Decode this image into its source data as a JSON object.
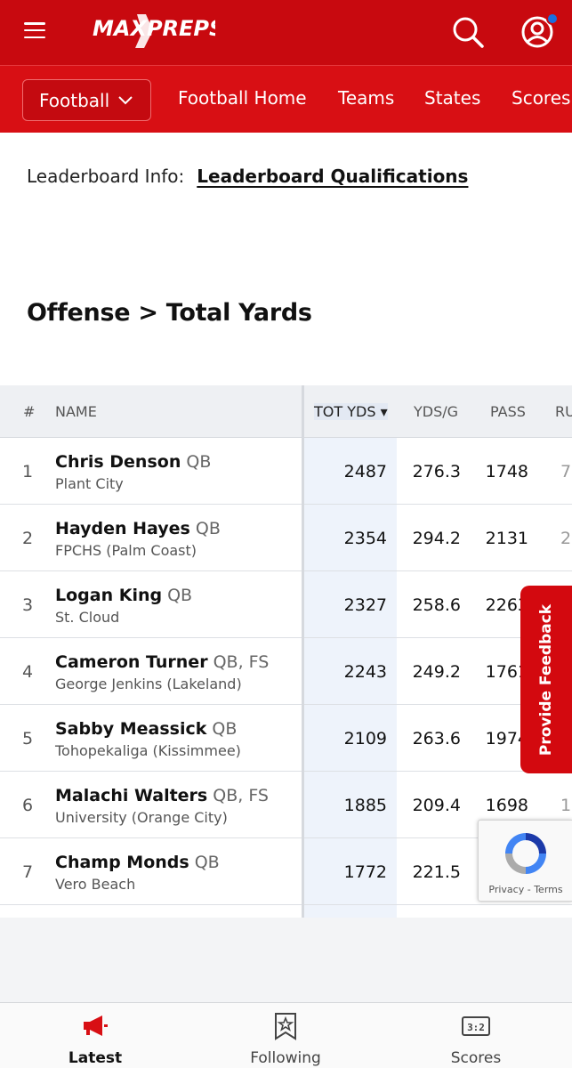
{
  "header": {
    "logo_text": "MAXPREPS",
    "menu_icon": "hamburger-icon",
    "search_icon": "search-icon",
    "profile_icon": "user-circle-icon",
    "brand_color": "#c8090f"
  },
  "subnav": {
    "sport": "Football",
    "links": [
      "Football Home",
      "Teams",
      "States",
      "Scores"
    ]
  },
  "info": {
    "label": "Leaderboard Info:",
    "link": "Leaderboard Qualifications"
  },
  "section_title": "Offense > Total Yards",
  "table": {
    "headers": [
      "#",
      "NAME",
      "TOT YDS ▾",
      "YDS/G",
      "PASS",
      "RU"
    ],
    "rows": [
      {
        "rank": "1",
        "name": "Chris Denson",
        "pos": "QB",
        "school": "Plant City",
        "tot": "2487",
        "ydsg": "276.3",
        "pass": "1748",
        "rush": "7"
      },
      {
        "rank": "2",
        "name": "Hayden Hayes",
        "pos": "QB",
        "school": "FPCHS (Palm Coast)",
        "tot": "2354",
        "ydsg": "294.2",
        "pass": "2131",
        "rush": "2"
      },
      {
        "rank": "3",
        "name": "Logan King",
        "pos": "QB",
        "school": "St. Cloud",
        "tot": "2327",
        "ydsg": "258.6",
        "pass": "2263",
        "rush": ""
      },
      {
        "rank": "4",
        "name": "Cameron Turner",
        "pos": "QB, FS",
        "school": "George Jenkins (Lakeland)",
        "tot": "2243",
        "ydsg": "249.2",
        "pass": "1761",
        "rush": ""
      },
      {
        "rank": "5",
        "name": "Sabby Meassick",
        "pos": "QB",
        "school": "Tohopekaliga (Kissimmee)",
        "tot": "2109",
        "ydsg": "263.6",
        "pass": "1974",
        "rush": ""
      },
      {
        "rank": "6",
        "name": "Malachi Walters",
        "pos": "QB, FS",
        "school": "University (Orange City)",
        "tot": "1885",
        "ydsg": "209.4",
        "pass": "1698",
        "rush": "1"
      },
      {
        "rank": "7",
        "name": "Champ Monds",
        "pos": "QB",
        "school": "Vero Beach",
        "tot": "1772",
        "ydsg": "221.5",
        "pass": "",
        "rush": ""
      }
    ]
  },
  "feedback_label": "Provide Feedback",
  "recaptcha": {
    "text": "Privacy - Terms"
  },
  "tabbar": [
    {
      "label": "Latest",
      "icon": "megaphone-icon",
      "active": true
    },
    {
      "label": "Following",
      "icon": "star-bookmark-icon",
      "active": false
    },
    {
      "label": "Scores",
      "icon": "scoreboard-icon",
      "active": false
    }
  ]
}
